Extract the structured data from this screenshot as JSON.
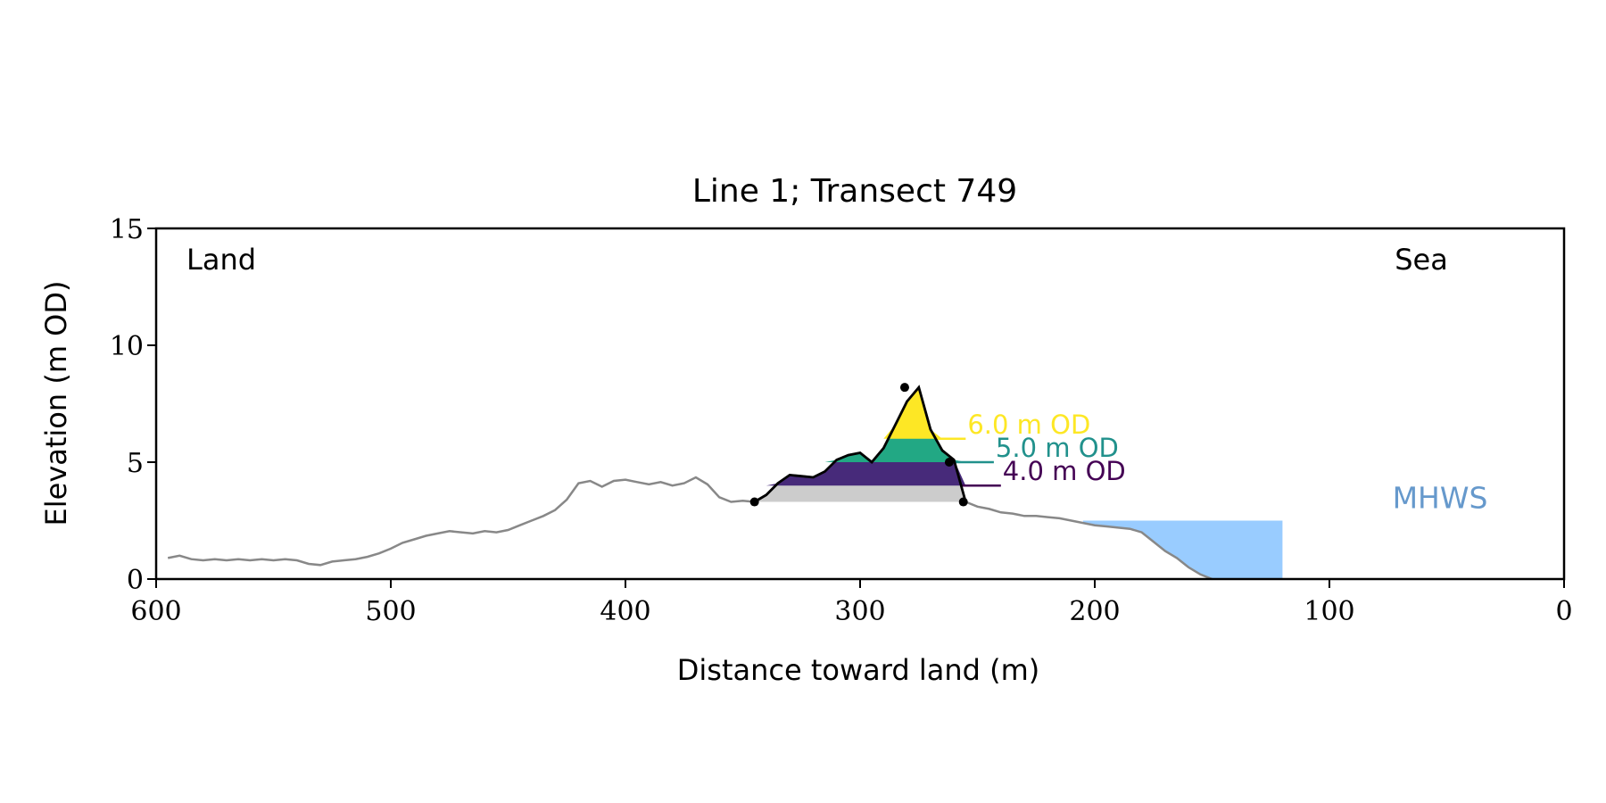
{
  "chart_data": {
    "type": "line",
    "title": "Line 1; Transect 749",
    "xlabel": "Distance toward land (m)",
    "ylabel": "Elevation (m OD)",
    "xlim": [
      600,
      0
    ],
    "ylim": [
      0,
      15
    ],
    "x_ticks": [
      600,
      500,
      400,
      300,
      200,
      100,
      0
    ],
    "y_ticks": [
      0,
      5,
      10,
      15
    ],
    "grid": false,
    "corner_labels": {
      "left": "Land",
      "right": "Sea"
    },
    "colors": {
      "profile": "#888888",
      "dune_outline": "#000000",
      "base_fill": "#cccccc",
      "band_4": "#440154",
      "band_4_fill": "#472a7a",
      "band_5": "#21918c",
      "band_5_fill": "#22a884",
      "band_6": "#fde725",
      "water": "#99ccff",
      "mhws_text": "#6699cc"
    },
    "profile": {
      "x": [
        595,
        590,
        585,
        580,
        575,
        570,
        565,
        560,
        555,
        550,
        545,
        540,
        535,
        530,
        525,
        520,
        515,
        510,
        505,
        500,
        495,
        490,
        485,
        480,
        475,
        470,
        465,
        460,
        455,
        450,
        445,
        440,
        435,
        430,
        425,
        420,
        415,
        410,
        405,
        400,
        395,
        390,
        385,
        380,
        375,
        370,
        365,
        360,
        355,
        350,
        345,
        340,
        335,
        330,
        325,
        320,
        315,
        310,
        305,
        300,
        295,
        290,
        285,
        280,
        275,
        270,
        265,
        260,
        255,
        250,
        245,
        240,
        235,
        230,
        225,
        220,
        215,
        210,
        205,
        200,
        195,
        190,
        185,
        180,
        175,
        170,
        165,
        160,
        155,
        150
      ],
      "y": [
        0.9,
        1.0,
        0.85,
        0.8,
        0.85,
        0.8,
        0.85,
        0.8,
        0.85,
        0.8,
        0.85,
        0.8,
        0.65,
        0.6,
        0.75,
        0.8,
        0.85,
        0.95,
        1.1,
        1.3,
        1.55,
        1.7,
        1.85,
        1.95,
        2.05,
        2.0,
        1.95,
        2.05,
        2.0,
        2.1,
        2.3,
        2.5,
        2.7,
        2.95,
        3.4,
        4.1,
        4.2,
        3.95,
        4.2,
        4.25,
        4.15,
        4.05,
        4.15,
        4.0,
        4.1,
        4.35,
        4.05,
        3.5,
        3.3,
        3.35,
        3.3,
        3.6,
        4.1,
        4.45,
        4.4,
        4.35,
        4.6,
        5.1,
        5.3,
        5.4,
        5.0,
        5.6,
        6.6,
        7.6,
        8.2,
        6.4,
        5.5,
        5.1,
        3.3,
        3.1,
        3.0,
        2.85,
        2.8,
        2.7,
        2.7,
        2.65,
        2.6,
        2.5,
        2.4,
        2.3,
        2.25,
        2.2,
        2.15,
        2.0,
        1.6,
        1.2,
        0.9,
        0.5,
        0.2,
        0.0
      ]
    },
    "dune": {
      "x": [
        345,
        340,
        335,
        330,
        325,
        320,
        315,
        310,
        305,
        300,
        295,
        290,
        285,
        280,
        275,
        270,
        265,
        260,
        255
      ],
      "y": [
        3.3,
        3.6,
        4.1,
        4.45,
        4.4,
        4.35,
        4.6,
        5.1,
        5.3,
        5.4,
        5.0,
        5.6,
        6.6,
        7.6,
        8.2,
        6.4,
        5.5,
        5.1,
        3.3
      ],
      "points": [
        {
          "x": 345,
          "y": 3.3
        },
        {
          "x": 281,
          "y": 8.2
        },
        {
          "x": 262,
          "y": 5.0
        },
        {
          "x": 256,
          "y": 3.3
        }
      ],
      "base_elevation": 3.3
    },
    "thresholds": [
      {
        "label": "6.0 m OD",
        "elevation": 6.0,
        "line_end_x": 255
      },
      {
        "label": "5.0 m OD",
        "elevation": 5.0,
        "line_end_x": 243
      },
      {
        "label": "4.0 m OD",
        "elevation": 4.0,
        "line_end_x": 240
      }
    ],
    "mhws": {
      "label": "MHWS",
      "elevation": 2.5,
      "x_from": 205,
      "x_to": 120
    }
  }
}
